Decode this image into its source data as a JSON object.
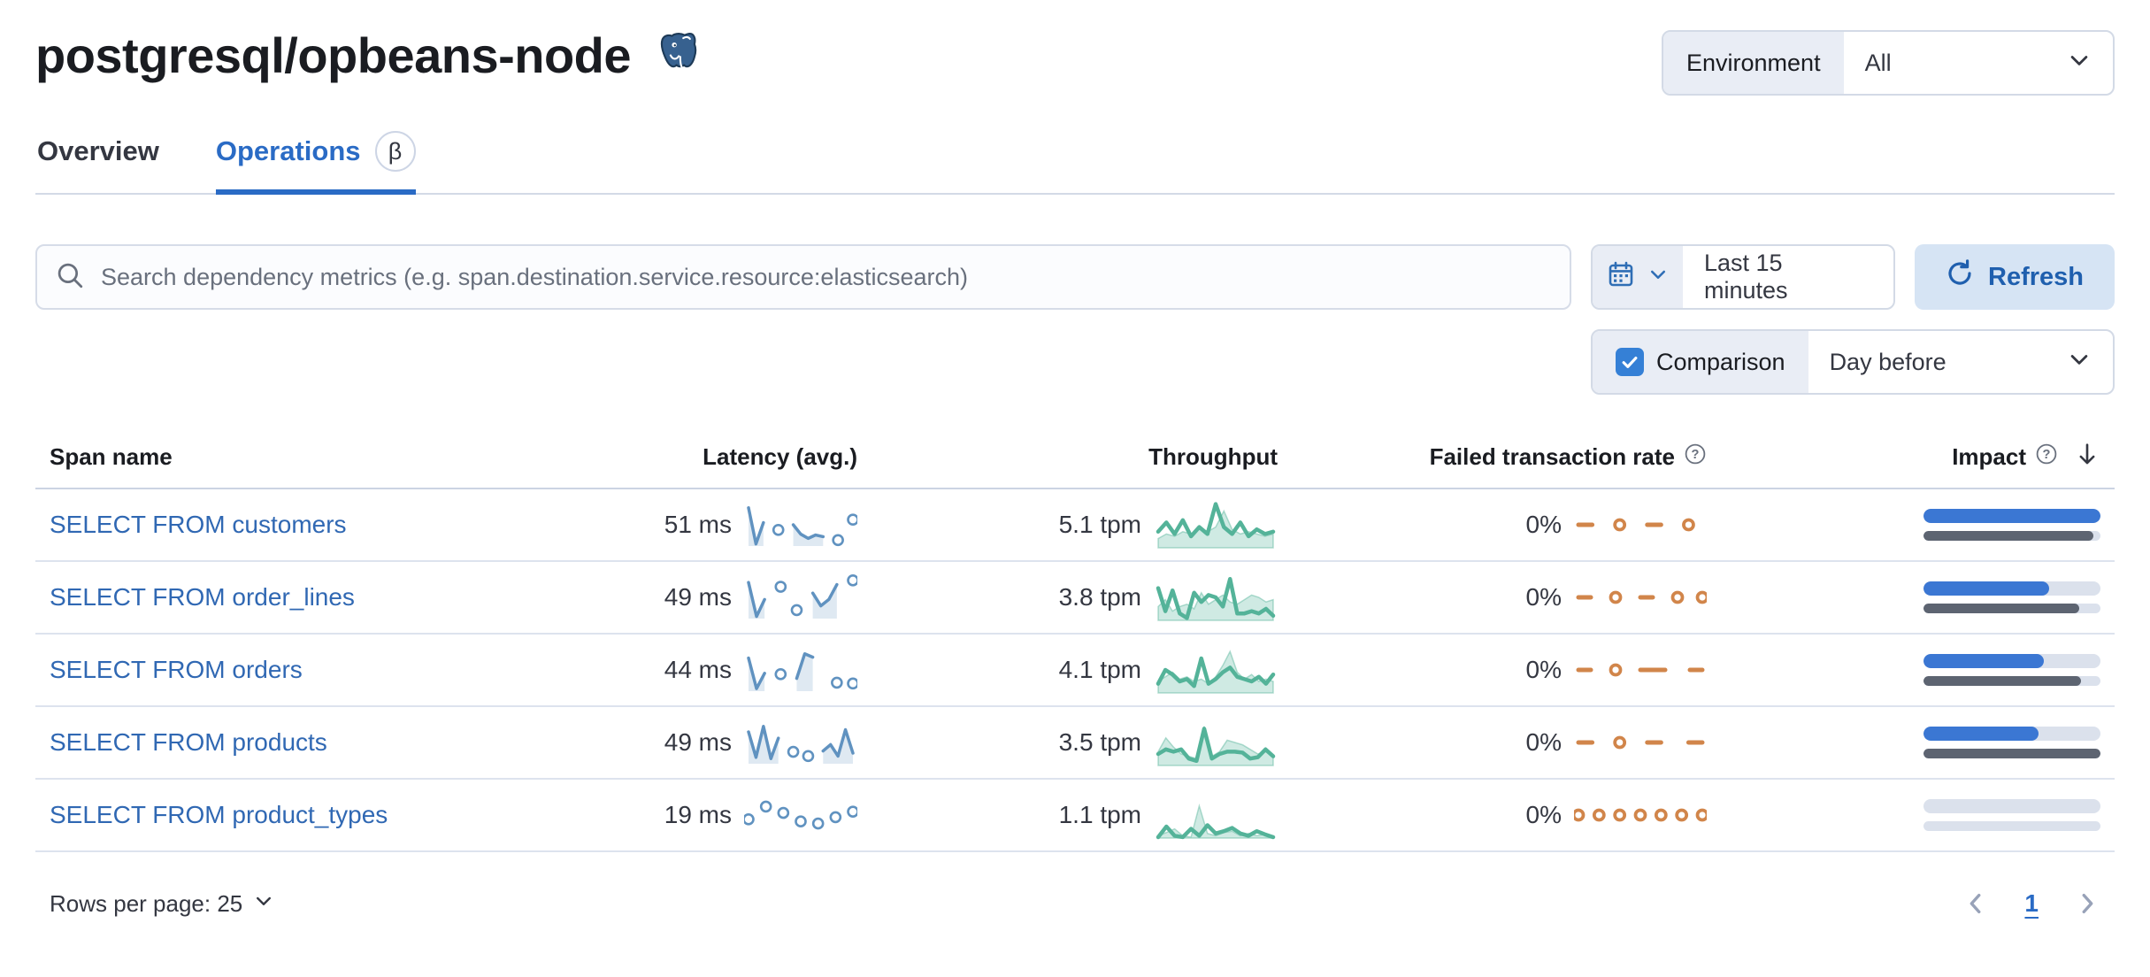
{
  "page": {
    "title": "postgresql/opbeans-node"
  },
  "environment": {
    "label": "Environment",
    "value": "All"
  },
  "tabs": {
    "overview": "Overview",
    "operations": "Operations",
    "beta": "β"
  },
  "search": {
    "placeholder": "Search dependency metrics (e.g. span.destination.service.resource:elasticsearch)"
  },
  "timepicker": {
    "range": "Last 15 minutes"
  },
  "refresh": {
    "label": "Refresh"
  },
  "comparison": {
    "label": "Comparison",
    "checked": true,
    "value": "Day before"
  },
  "colors": {
    "link_blue": "#3068b3",
    "tab_active": "#2a6bc5",
    "refresh_bg": "#d6e4f4",
    "refresh_text": "#1f5fae",
    "latency_spark": "#6092c0",
    "throughput_spark": "#54b399",
    "failed_spark": "#d1854a",
    "impact_current": "#3b77d3",
    "impact_previous": "#5d6471",
    "impact_track": "#dbe1ec",
    "checkbox_blue": "#3580d6"
  },
  "table": {
    "headers": {
      "span_name": "Span name",
      "latency": "Latency (avg.)",
      "throughput": "Throughput",
      "failed": "Failed transaction rate",
      "impact": "Impact"
    },
    "rows": [
      {
        "span_name": "SELECT FROM customers",
        "latency": "51 ms",
        "throughput": "5.1 tpm",
        "failed": "0%",
        "latency_spark": [
          90,
          5,
          55,
          null,
          38,
          null,
          50,
          28,
          18,
          26,
          22,
          null,
          14,
          null,
          62
        ],
        "throughput_spark": {
          "current": [
            35,
            55,
            30,
            60,
            25,
            45,
            30,
            95,
            45,
            30,
            55,
            25,
            40,
            30,
            35
          ],
          "previous": [
            20,
            30,
            25,
            35,
            30,
            40,
            35,
            45,
            80,
            40,
            30,
            35,
            30,
            25,
            30
          ]
        },
        "failed_spark": [
          50,
          50,
          null,
          50,
          null,
          50,
          50,
          null,
          50,
          null
        ],
        "impact": 1.0,
        "impact_previous": 0.96
      },
      {
        "span_name": "SELECT FROM order_lines",
        "latency": "49 ms",
        "throughput": "3.8 tpm",
        "failed": "0%",
        "latency_spark": [
          85,
          5,
          45,
          null,
          75,
          null,
          20,
          null,
          60,
          30,
          45,
          80,
          null,
          90
        ],
        "throughput_spark": {
          "current": [
            70,
            20,
            65,
            15,
            5,
            60,
            40,
            55,
            50,
            30,
            90,
            15,
            15,
            20,
            15,
            25,
            10
          ],
          "previous": [
            30,
            45,
            20,
            30,
            35,
            25,
            60,
            35,
            45,
            55,
            40,
            35,
            45,
            55,
            50,
            40,
            45
          ]
        },
        "failed_spark": [
          50,
          50,
          null,
          50,
          null,
          50,
          50,
          null,
          50,
          null,
          50
        ],
        "impact": 0.71,
        "impact_previous": 0.88
      },
      {
        "span_name": "SELECT FROM orders",
        "latency": "44 ms",
        "throughput": "4.1 tpm",
        "failed": "0%",
        "latency_spark": [
          78,
          6,
          42,
          null,
          40,
          null,
          30,
          88,
          80,
          null,
          null,
          20,
          null,
          18
        ],
        "throughput_spark": {
          "current": [
            20,
            50,
            40,
            25,
            30,
            15,
            75,
            20,
            30,
            45,
            55,
            35,
            30,
            25,
            35,
            20,
            40
          ],
          "previous": [
            25,
            35,
            45,
            30,
            35,
            25,
            30,
            20,
            35,
            60,
            90,
            45,
            30,
            40,
            25,
            30,
            25
          ]
        },
        "failed_spark": [
          50,
          50,
          null,
          50,
          null,
          50,
          50,
          50,
          null,
          50,
          50
        ],
        "impact": 0.68,
        "impact_previous": 0.89
      },
      {
        "span_name": "SELECT FROM products",
        "latency": "49 ms",
        "throughput": "3.5 tpm",
        "failed": "0%",
        "latency_spark": [
          75,
          15,
          88,
          12,
          60,
          null,
          28,
          null,
          18,
          null,
          30,
          45,
          18,
          80,
          25
        ],
        "throughput_spark": {
          "current": [
            25,
            35,
            30,
            35,
            15,
            10,
            80,
            15,
            25,
            30,
            30,
            28,
            15,
            18,
            35,
            20
          ],
          "previous": [
            30,
            60,
            40,
            25,
            20,
            15,
            85,
            20,
            30,
            55,
            50,
            45,
            35,
            25,
            30,
            20
          ]
        },
        "failed_spark": [
          50,
          50,
          null,
          50,
          null,
          50,
          50,
          null,
          50,
          50
        ],
        "impact": 0.65,
        "impact_previous": 1.0
      },
      {
        "span_name": "SELECT FROM product_types",
        "latency": "19 ms",
        "throughput": "1.1 tpm",
        "failed": "0%",
        "latency_spark": [
          40,
          null,
          70,
          null,
          55,
          null,
          35,
          null,
          30,
          null,
          45,
          null,
          58
        ],
        "throughput_spark": {
          "current": [
            2,
            25,
            5,
            2,
            20,
            5,
            28,
            10,
            15,
            22,
            10,
            5,
            15,
            8,
            2
          ],
          "previous": [
            5,
            12,
            20,
            5,
            2,
            70,
            10,
            5,
            12,
            15,
            5,
            10,
            5,
            8,
            5
          ]
        },
        "failed_spark": [
          50,
          null,
          50,
          null,
          50,
          null,
          50,
          null,
          50,
          null,
          50,
          null,
          50
        ],
        "impact": 0,
        "impact_previous": 0
      }
    ]
  },
  "footer": {
    "rows_per_page": "Rows per page: 25",
    "page": "1"
  }
}
